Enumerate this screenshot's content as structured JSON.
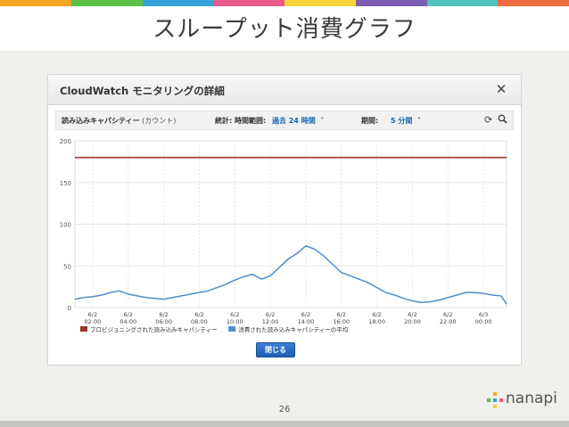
{
  "slide": {
    "title": "スループット消費グラフ",
    "page_number": "26",
    "brand": "nanapi",
    "accent_colors": [
      "#f6a623",
      "#5cbf48",
      "#35a3d9",
      "#e85a8a",
      "#f6d43a",
      "#7c5fb0",
      "#4ec3c0",
      "#f06b3d"
    ]
  },
  "dialog": {
    "title": "CloudWatch モニタリングの詳細",
    "close_icon": "close-icon",
    "toolbar": {
      "metric_label": "読み込みキャパシティー",
      "metric_unit": "(カウント)",
      "stats_label": "統計: 時間範囲:",
      "range_value": "過去 24 時間",
      "period_label": "期間:",
      "period_value": "5 分間",
      "refresh_icon": "refresh-icon",
      "zoom_icon": "zoom-icon"
    },
    "close_button": "閉じる"
  },
  "chart_data": {
    "type": "line",
    "yticks": [
      "200",
      "150",
      "100",
      "50",
      "0"
    ],
    "ylim": [
      0,
      200
    ],
    "xticks": [
      {
        "date": "6/2",
        "time": "02:00"
      },
      {
        "date": "6/2",
        "time": "04:00"
      },
      {
        "date": "6/2",
        "time": "06:00"
      },
      {
        "date": "6/2",
        "time": "08:00"
      },
      {
        "date": "6/2",
        "time": "10:00"
      },
      {
        "date": "6/2",
        "time": "12:00"
      },
      {
        "date": "6/2",
        "time": "14:00"
      },
      {
        "date": "6/2",
        "time": "16:00"
      },
      {
        "date": "6/2",
        "time": "18:00"
      },
      {
        "date": "6/2",
        "time": "20:00"
      },
      {
        "date": "6/2",
        "time": "22:00"
      },
      {
        "date": "6/3",
        "time": "00:00"
      }
    ],
    "x_hours": [
      0,
      0.5,
      1,
      1.5,
      2,
      2.5,
      3,
      3.5,
      4,
      4.5,
      5,
      5.5,
      6,
      6.5,
      7,
      7.5,
      8,
      8.5,
      9,
      9.5,
      10,
      10.5,
      11,
      11.5,
      12,
      12.5,
      13,
      13.5,
      14,
      14.5,
      15,
      15.5,
      16,
      16.5,
      17,
      17.5,
      18,
      18.5,
      19,
      19.5,
      20,
      20.5,
      21,
      21.5,
      22,
      22.5,
      23,
      23.5,
      24,
      24.3
    ],
    "series": [
      {
        "name": "プロビジョニングされた読み込みキャパシティー",
        "color": "#a0352d",
        "values": [
          180,
          180,
          180,
          180,
          180,
          180,
          180,
          180,
          180,
          180,
          180,
          180,
          180,
          180,
          180,
          180,
          180,
          180,
          180,
          180,
          180,
          180,
          180,
          180,
          180,
          180,
          180,
          180,
          180,
          180,
          180,
          180,
          180,
          180,
          180,
          180,
          180,
          180,
          180,
          180,
          180,
          180,
          180,
          180,
          180,
          180,
          180,
          180,
          180,
          180
        ]
      },
      {
        "name": "消費された読み込みキャパシティーの平均",
        "color": "#4e8ec9",
        "values": [
          10,
          12,
          13,
          15,
          18,
          20,
          16,
          14,
          12,
          11,
          10,
          12,
          14,
          16,
          18,
          20,
          24,
          28,
          33,
          37,
          40,
          34,
          38,
          48,
          58,
          65,
          74,
          70,
          62,
          52,
          42,
          38,
          34,
          30,
          24,
          18,
          15,
          11,
          8,
          6,
          7,
          9,
          12,
          15,
          18,
          18,
          17,
          15,
          14,
          4
        ]
      }
    ]
  }
}
